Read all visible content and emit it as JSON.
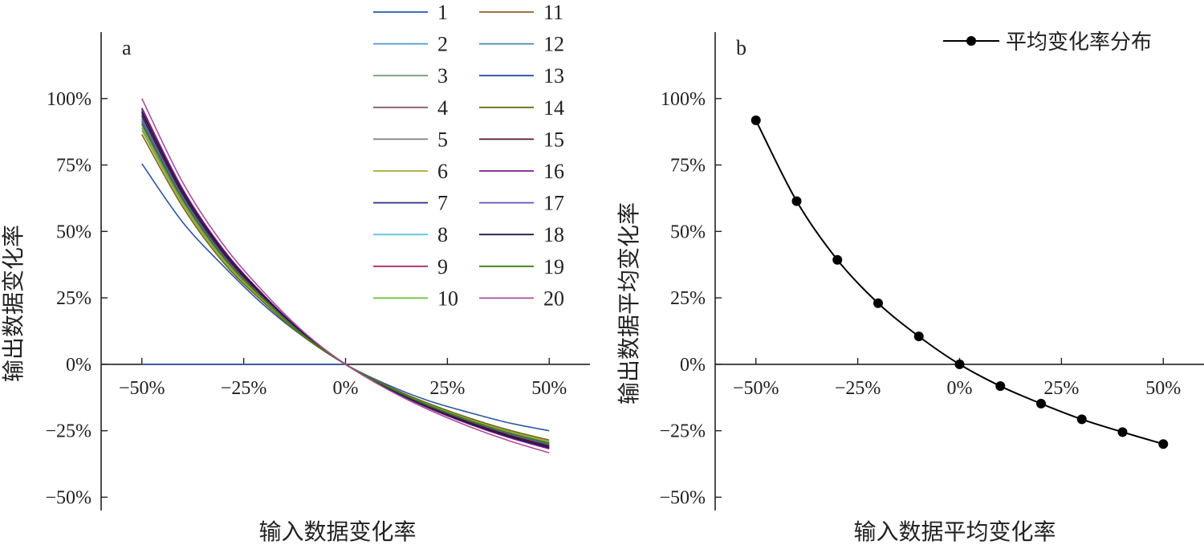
{
  "chart_data": [
    {
      "type": "line",
      "panel_label": "a",
      "xlabel": "输入数据变化率",
      "ylabel": "输出数据变化率",
      "xlim": [
        -0.6,
        0.6
      ],
      "ylim": [
        -0.55,
        1.25
      ],
      "x_ticks": [
        -0.5,
        -0.25,
        0,
        0.25,
        0.5
      ],
      "x_tick_labels": [
        "−50%",
        "−25%",
        "0%",
        "25%",
        "50%"
      ],
      "y_ticks": [
        -0.5,
        -0.25,
        0,
        0.25,
        0.5,
        0.75,
        1.0
      ],
      "y_tick_labels": [
        "−50%",
        "−25%",
        "0%",
        "25%",
        "50%",
        "75%",
        "100%"
      ],
      "x": [
        -0.5,
        -0.4,
        -0.3,
        -0.2,
        -0.1,
        0,
        0.1,
        0.2,
        0.3,
        0.4,
        0.5
      ],
      "reference_line": {
        "from_x": -0.5,
        "to_x": 0,
        "y": 0,
        "color": "#2b56a3"
      },
      "legend_position": "top-right",
      "legend_columns": 2,
      "series": [
        {
          "name": "1",
          "color": "#2b56a3",
          "values": [
            0.755,
            0.535,
            0.37,
            0.222,
            0.1,
            0,
            -0.075,
            -0.135,
            -0.18,
            -0.22,
            -0.25
          ]
        },
        {
          "name": "2",
          "color": "#4a98d8",
          "values": [
            0.91,
            0.624,
            0.407,
            0.245,
            0.107,
            0,
            -0.084,
            -0.152,
            -0.21,
            -0.259,
            -0.298
          ]
        },
        {
          "name": "3",
          "color": "#7a9a7c",
          "values": [
            0.89,
            0.609,
            0.395,
            0.238,
            0.104,
            0,
            -0.082,
            -0.149,
            -0.206,
            -0.254,
            -0.293
          ]
        },
        {
          "name": "4",
          "color": "#8a5a6e",
          "values": [
            0.95,
            0.65,
            0.425,
            0.255,
            0.112,
            0,
            -0.087,
            -0.159,
            -0.219,
            -0.27,
            -0.312
          ]
        },
        {
          "name": "5",
          "color": "#808080",
          "values": [
            0.92,
            0.63,
            0.41,
            0.247,
            0.108,
            0,
            -0.085,
            -0.154,
            -0.212,
            -0.262,
            -0.302
          ]
        },
        {
          "name": "6",
          "color": "#a6a832",
          "values": [
            0.88,
            0.603,
            0.39,
            0.235,
            0.103,
            0,
            -0.081,
            -0.147,
            -0.203,
            -0.251,
            -0.29
          ]
        },
        {
          "name": "7",
          "color": "#242f86",
          "values": [
            0.96,
            0.657,
            0.43,
            0.258,
            0.113,
            0,
            -0.088,
            -0.161,
            -0.222,
            -0.273,
            -0.316
          ]
        },
        {
          "name": "8",
          "color": "#5bc8d8",
          "values": [
            0.93,
            0.637,
            0.415,
            0.25,
            0.109,
            0,
            -0.086,
            -0.156,
            -0.215,
            -0.265,
            -0.305
          ]
        },
        {
          "name": "9",
          "color": "#a8286e",
          "values": [
            0.955,
            0.654,
            0.428,
            0.257,
            0.112,
            0,
            -0.088,
            -0.16,
            -0.221,
            -0.272,
            -0.314
          ]
        },
        {
          "name": "10",
          "color": "#6abf3a",
          "values": [
            0.9,
            0.617,
            0.4,
            0.241,
            0.106,
            0,
            -0.083,
            -0.151,
            -0.208,
            -0.257,
            -0.296
          ]
        },
        {
          "name": "11",
          "color": "#8a6420",
          "values": [
            0.94,
            0.644,
            0.42,
            0.252,
            0.11,
            0,
            -0.085,
            -0.155,
            -0.214,
            -0.264,
            -0.303
          ]
        },
        {
          "name": "12",
          "color": "#3e8aa8",
          "values": [
            0.925,
            0.634,
            0.412,
            0.248,
            0.108,
            0,
            -0.085,
            -0.155,
            -0.213,
            -0.263,
            -0.303
          ]
        },
        {
          "name": "13",
          "color": "#2a4ea8",
          "values": [
            0.945,
            0.647,
            0.422,
            0.253,
            0.111,
            0,
            -0.087,
            -0.158,
            -0.218,
            -0.268,
            -0.31
          ]
        },
        {
          "name": "14",
          "color": "#6f6a1a",
          "values": [
            0.865,
            0.593,
            0.383,
            0.231,
            0.101,
            0,
            -0.08,
            -0.145,
            -0.2,
            -0.247,
            -0.285
          ]
        },
        {
          "name": "15",
          "color": "#5a1028",
          "values": [
            0.935,
            0.64,
            0.417,
            0.251,
            0.11,
            0,
            -0.086,
            -0.156,
            -0.216,
            -0.266,
            -0.307
          ]
        },
        {
          "name": "16",
          "color": "#7a1a8a",
          "values": [
            0.965,
            0.66,
            0.432,
            0.259,
            0.114,
            0,
            -0.089,
            -0.162,
            -0.223,
            -0.275,
            -0.318
          ]
        },
        {
          "name": "17",
          "color": "#6a50b8",
          "values": [
            0.915,
            0.627,
            0.408,
            0.246,
            0.107,
            0,
            -0.084,
            -0.153,
            -0.211,
            -0.26,
            -0.3
          ]
        },
        {
          "name": "18",
          "color": "#1c1c4a",
          "values": [
            0.95,
            0.651,
            0.426,
            0.256,
            0.112,
            0,
            -0.087,
            -0.159,
            -0.22,
            -0.271,
            -0.313
          ]
        },
        {
          "name": "19",
          "color": "#3a7a1a",
          "values": [
            0.905,
            0.62,
            0.403,
            0.243,
            0.106,
            0,
            -0.083,
            -0.152,
            -0.209,
            -0.258,
            -0.297
          ]
        },
        {
          "name": "20",
          "color": "#b04a9a",
          "values": [
            1.0,
            0.685,
            0.45,
            0.27,
            0.118,
            0,
            -0.092,
            -0.168,
            -0.232,
            -0.287,
            -0.333
          ]
        }
      ]
    },
    {
      "type": "line",
      "panel_label": "b",
      "xlabel": "输入数据平均变化率",
      "ylabel": "输出数据平均变化率",
      "xlim": [
        -0.6,
        0.6
      ],
      "ylim": [
        -0.55,
        1.25
      ],
      "x_ticks": [
        -0.5,
        -0.25,
        0,
        0.25,
        0.5
      ],
      "x_tick_labels": [
        "−50%",
        "−25%",
        "0%",
        "25%",
        "50%"
      ],
      "y_ticks": [
        -0.5,
        -0.25,
        0,
        0.25,
        0.5,
        0.75,
        1.0
      ],
      "y_tick_labels": [
        "−50%",
        "−25%",
        "0%",
        "25%",
        "50%",
        "75%",
        "100%"
      ],
      "legend_position": "top-right",
      "series": [
        {
          "name": "平均变化率分布",
          "color": "#000000",
          "marker": "circle",
          "x": [
            -0.5,
            -0.4,
            -0.3,
            -0.2,
            -0.1,
            0,
            0.1,
            0.2,
            0.3,
            0.4,
            0.5
          ],
          "values": [
            0.918,
            0.614,
            0.393,
            0.23,
            0.105,
            0,
            -0.082,
            -0.148,
            -0.207,
            -0.255,
            -0.3
          ]
        }
      ]
    }
  ]
}
